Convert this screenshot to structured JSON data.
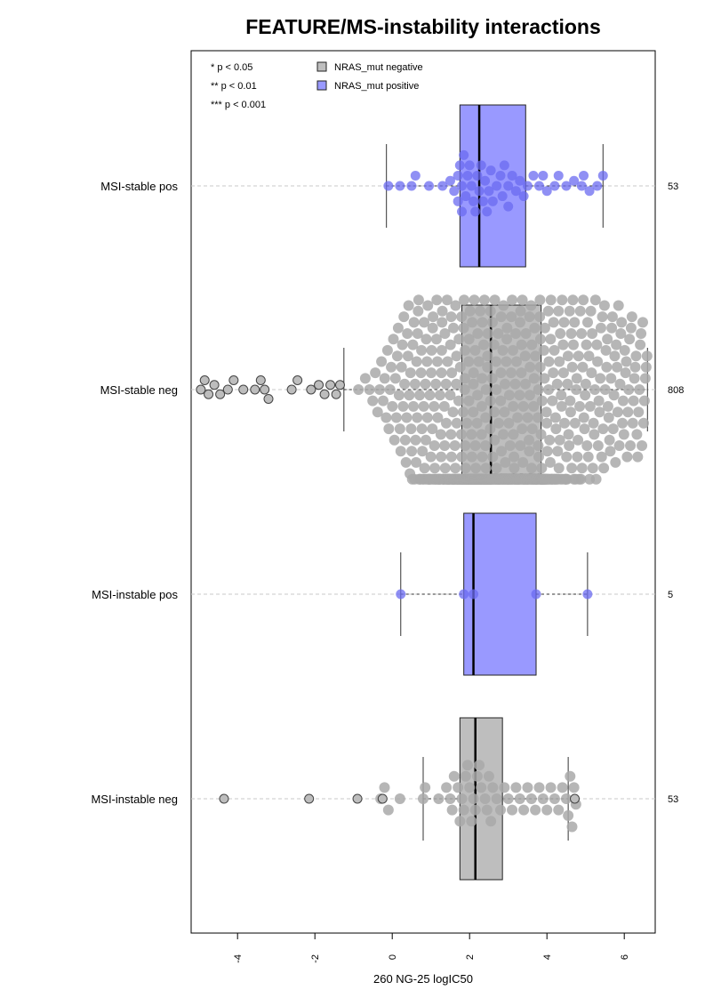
{
  "chart_data": {
    "type": "box-beeswarm",
    "title": "FEATURE/MS-instability interactions",
    "xlabel": "260 NG-25 logIC50",
    "x_ticks": [
      -4,
      -2,
      0,
      2,
      4,
      6
    ],
    "x_tick_labels": [
      "-4",
      "-2",
      "0",
      "2",
      "4",
      "6"
    ],
    "xlim": [
      -5.2,
      6.8
    ],
    "significance_legend": [
      "* p < 0.05",
      "** p < 0.01",
      "*** p < 0.001"
    ],
    "legend": [
      {
        "label": "NRAS_mut negative",
        "color": "#bebebe"
      },
      {
        "label": "NRAS_mut positive",
        "color": "#9999ff"
      }
    ],
    "colors": {
      "negative_box": "#bebebe",
      "positive_box": "#9999ff",
      "negative_point": "#a9a9a9",
      "positive_point": "#6b6bf0",
      "outlier_fill": "#bdbdbd",
      "grid": "#c8c8c8"
    },
    "groups": [
      {
        "label": "MSI-stable pos",
        "n": "53",
        "mutation": "positive",
        "q1": 1.75,
        "median": 2.25,
        "q3": 3.45,
        "whisker_low": -0.15,
        "whisker_high": 5.45,
        "points": [
          -0.1,
          0.2,
          0.5,
          0.6,
          0.95,
          1.3,
          1.5,
          1.6,
          1.7,
          1.7,
          1.75,
          1.8,
          1.8,
          1.85,
          1.9,
          1.95,
          2.0,
          2.05,
          2.1,
          2.15,
          2.2,
          2.25,
          2.3,
          2.35,
          2.4,
          2.45,
          2.5,
          2.55,
          2.6,
          2.7,
          2.8,
          2.85,
          2.9,
          3.0,
          3.0,
          3.1,
          3.2,
          3.3,
          3.4,
          3.5,
          3.65,
          3.8,
          3.9,
          4.0,
          4.2,
          4.3,
          4.5,
          4.7,
          4.9,
          4.95,
          5.1,
          5.3,
          5.45
        ],
        "outliers": []
      },
      {
        "label": "MSI-stable neg",
        "n": "808",
        "mutation": "negative",
        "q1": 1.8,
        "median": 2.55,
        "q3": 3.85,
        "whisker_low": -1.25,
        "whisker_high": 6.6,
        "points": [],
        "outliers": [
          -4.95,
          -4.85,
          -4.75,
          -4.6,
          -4.45,
          -4.25,
          -4.1,
          -3.85,
          -3.55,
          -3.4,
          -3.3,
          -3.2,
          -2.6,
          -2.45,
          -2.1,
          -1.9,
          -1.75,
          -1.6,
          -1.45,
          -1.35
        ]
      },
      {
        "label": "MSI-instable pos",
        "n": "5",
        "mutation": "positive",
        "q1": 1.85,
        "median": 2.1,
        "q3": 3.72,
        "whisker_low": 0.22,
        "whisker_high": 5.05,
        "points": [
          0.22,
          1.85,
          2.1,
          3.72,
          5.05
        ],
        "outliers": []
      },
      {
        "label": "MSI-instable neg",
        "n": "53",
        "mutation": "negative",
        "q1": 1.75,
        "median": 2.15,
        "q3": 2.85,
        "whisker_low": 0.8,
        "whisker_high": 4.55,
        "points": [
          -0.3,
          -0.2,
          -0.1,
          0.2,
          0.8,
          0.85,
          1.2,
          1.4,
          1.5,
          1.55,
          1.6,
          1.7,
          1.75,
          1.8,
          1.85,
          1.9,
          1.95,
          2.0,
          2.05,
          2.1,
          2.15,
          2.2,
          2.25,
          2.3,
          2.4,
          2.45,
          2.5,
          2.55,
          2.6,
          2.7,
          2.8,
          2.9,
          3.0,
          3.1,
          3.2,
          3.3,
          3.4,
          3.5,
          3.6,
          3.7,
          3.8,
          3.9,
          4.0,
          4.1,
          4.2,
          4.3,
          4.4,
          4.5,
          4.55,
          4.6,
          4.65,
          4.7,
          4.75
        ],
        "outliers": [
          -4.35,
          -2.15,
          -0.9,
          -0.25,
          4.72
        ]
      }
    ]
  }
}
